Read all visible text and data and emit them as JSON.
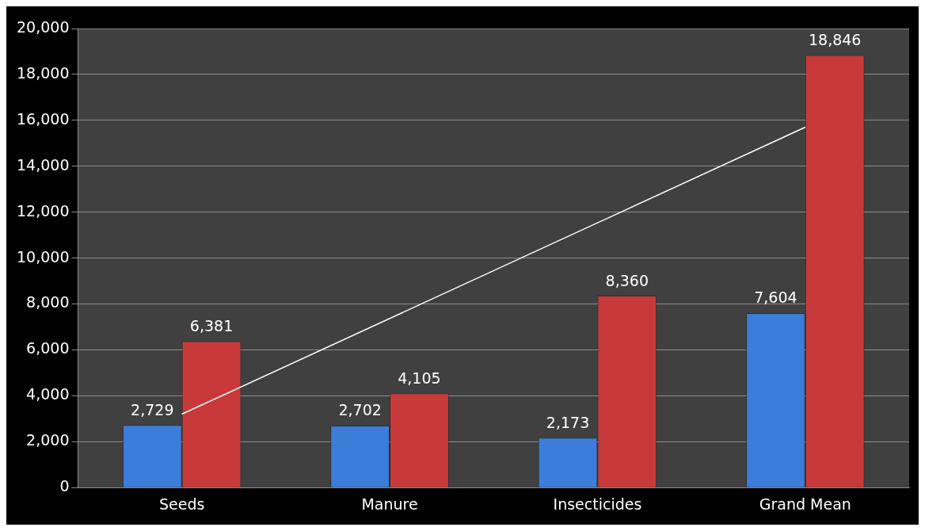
{
  "chart_data": {
    "type": "bar",
    "categories": [
      "Seeds",
      "Manure",
      "Insecticides",
      "Grand Mean"
    ],
    "series": [
      {
        "color": "#3b7dd8",
        "values": [
          2729,
          2702,
          2173,
          7604
        ],
        "value_labels": [
          "2,729",
          "2,702",
          "2,173",
          "7,604"
        ]
      },
      {
        "color": "#c83a3a",
        "values": [
          6381,
          4105,
          8360,
          18846
        ],
        "value_labels": [
          "6,381",
          "4,105",
          "8,360",
          "18,846"
        ]
      },
      {
        "type": "line",
        "color": "#ffffff",
        "x": [
          "Seeds",
          "Grand Mean"
        ],
        "values": [
          3200,
          15700
        ],
        "marker": "none"
      }
    ],
    "ylim": [
      0,
      20000
    ],
    "yticks": [
      0,
      {
        "value": 2000,
        "label": "2,000"
      },
      {
        "value": 4000,
        "label": "4,000"
      },
      {
        "value": 6000,
        "label": "6,000"
      },
      {
        "value": 8000,
        "label": "8,000"
      },
      {
        "value": 10000,
        "label": "10,000"
      },
      {
        "value": 12000,
        "label": "12,000"
      },
      {
        "value": 14000,
        "label": "14,000"
      },
      {
        "value": 16000,
        "label": "16,000"
      },
      {
        "value": 18000,
        "label": "18,000"
      },
      {
        "value": 20000,
        "label": "20,000"
      }
    ],
    "grid": "y",
    "legend": false
  }
}
